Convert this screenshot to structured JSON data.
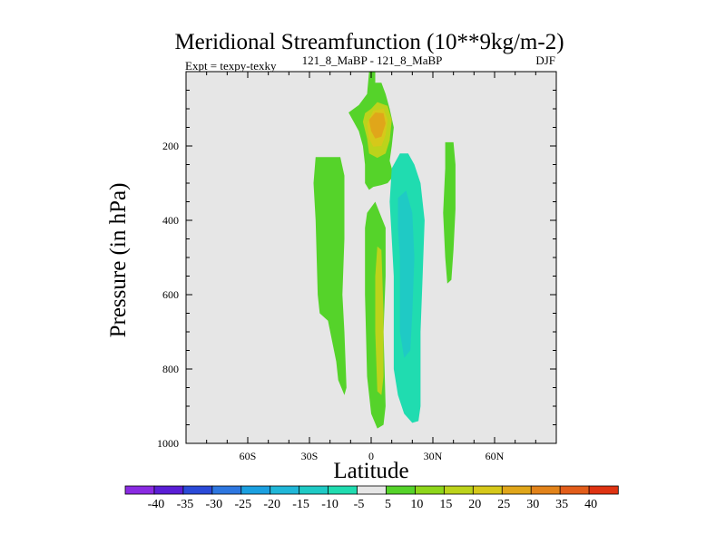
{
  "chart_data": {
    "type": "heatmap",
    "title": "Meridional Streamfunction (10**9kg/m-2)",
    "subtitle_left": "Expt = texpy-texky",
    "subtitle_center": "121_8_MaBP - 121_8_MaBP",
    "subtitle_right": "DJF",
    "xlabel": "Latitude",
    "ylabel": "Pressure (in hPa)",
    "xlim": [
      -90,
      90
    ],
    "ylim": [
      1000,
      0
    ],
    "x_ticks": [
      {
        "value": -60,
        "label": "60S"
      },
      {
        "value": -30,
        "label": "30S"
      },
      {
        "value": 0,
        "label": "0"
      },
      {
        "value": 30,
        "label": "30N"
      },
      {
        "value": 60,
        "label": "60N"
      }
    ],
    "y_ticks": [
      {
        "value": 200,
        "label": "200"
      },
      {
        "value": 400,
        "label": "400"
      },
      {
        "value": 600,
        "label": "600"
      },
      {
        "value": 800,
        "label": "800"
      },
      {
        "value": 1000,
        "label": "1000"
      }
    ],
    "colorbar": {
      "labels": [
        "-40",
        "-35",
        "-30",
        "-25",
        "-20",
        "-15",
        "-10",
        "-5",
        "5",
        "10",
        "15",
        "20",
        "25",
        "30",
        "35",
        "40"
      ],
      "colors": [
        "#8a2be2",
        "#5a1ed6",
        "#2b4ad8",
        "#2e77e0",
        "#1ba0e0",
        "#20b7d8",
        "#1fcac5",
        "#20dcb0",
        "#e6e6e6",
        "#55d32a",
        "#8ed61b",
        "#bcd31b",
        "#d6c81a",
        "#e0a61a",
        "#e2831a",
        "#e25d1a",
        "#df3312"
      ]
    },
    "background_color": "#e6e6e6",
    "contours": [
      {
        "name": "upper-nh-max-outer",
        "color": "#55d32a",
        "points": [
          [
            -1,
            0
          ],
          [
            2,
            0
          ],
          [
            2,
            30
          ],
          [
            5,
            30
          ],
          [
            7,
            60
          ],
          [
            9,
            100
          ],
          [
            11,
            150
          ],
          [
            10,
            200
          ],
          [
            9,
            240
          ],
          [
            11,
            280
          ],
          [
            8,
            300
          ],
          [
            5,
            305
          ],
          [
            1,
            310
          ],
          [
            -1,
            318
          ],
          [
            -3,
            300
          ],
          [
            -3,
            250
          ],
          [
            -4,
            200
          ],
          [
            -6,
            160
          ],
          [
            -11,
            110
          ],
          [
            -6,
            90
          ],
          [
            -2,
            60
          ]
        ]
      },
      {
        "name": "upper-nh-max-15",
        "color": "#bcd31b",
        "points": [
          [
            0,
            100
          ],
          [
            3,
            82
          ],
          [
            8,
            92
          ],
          [
            10,
            130
          ],
          [
            9,
            185
          ],
          [
            7,
            220
          ],
          [
            3,
            232
          ],
          [
            -1,
            220
          ],
          [
            -2,
            180
          ],
          [
            -4,
            135
          ],
          [
            -3,
            112
          ]
        ]
      },
      {
        "name": "upper-nh-max-20",
        "color": "#d6c81a",
        "points": [
          [
            1,
            105
          ],
          [
            6,
            100
          ],
          [
            8,
            130
          ],
          [
            7,
            170
          ],
          [
            5,
            200
          ],
          [
            1,
            202
          ],
          [
            -1,
            180
          ],
          [
            -2,
            140
          ]
        ]
      },
      {
        "name": "upper-nh-max-25",
        "color": "#e0a61a",
        "points": [
          [
            2,
            110
          ],
          [
            6,
            112
          ],
          [
            7,
            140
          ],
          [
            5,
            175
          ],
          [
            2,
            180
          ],
          [
            0,
            160
          ],
          [
            -1,
            130
          ]
        ]
      },
      {
        "name": "southern-green-cell",
        "color": "#55d32a",
        "points": [
          [
            -27,
            230
          ],
          [
            -15,
            230
          ],
          [
            -13,
            280
          ],
          [
            -13,
            450
          ],
          [
            -14,
            600
          ],
          [
            -13,
            700
          ],
          [
            -12,
            850
          ],
          [
            -13,
            870
          ],
          [
            -16,
            830
          ],
          [
            -17,
            780
          ],
          [
            -21,
            670
          ],
          [
            -25,
            650
          ],
          [
            -26,
            600
          ],
          [
            -27,
            400
          ],
          [
            -28,
            300
          ]
        ]
      },
      {
        "name": "equatorial-green-cell",
        "color": "#55d32a",
        "points": [
          [
            -2,
            380
          ],
          [
            2,
            350
          ],
          [
            7,
            420
          ],
          [
            7,
            550
          ],
          [
            6,
            700
          ],
          [
            7,
            900
          ],
          [
            6,
            950
          ],
          [
            3,
            960
          ],
          [
            0,
            920
          ],
          [
            -2,
            820
          ],
          [
            -3,
            600
          ],
          [
            -3,
            420
          ]
        ]
      },
      {
        "name": "equatorial-yellow-core",
        "color": "#bcd31b",
        "points": [
          [
            3,
            470
          ],
          [
            5,
            480
          ],
          [
            6,
            650
          ],
          [
            6,
            820
          ],
          [
            5,
            870
          ],
          [
            3,
            860
          ],
          [
            2,
            700
          ],
          [
            2,
            550
          ]
        ]
      },
      {
        "name": "cyan-cell-outer",
        "color": "#20dcb0",
        "points": [
          [
            10,
            260
          ],
          [
            14,
            220
          ],
          [
            18,
            220
          ],
          [
            21,
            250
          ],
          [
            24,
            300
          ],
          [
            26,
            400
          ],
          [
            25,
            550
          ],
          [
            24,
            700
          ],
          [
            24,
            900
          ],
          [
            23,
            940
          ],
          [
            20,
            945
          ],
          [
            16,
            920
          ],
          [
            13,
            870
          ],
          [
            11,
            800
          ],
          [
            11,
            550
          ],
          [
            10,
            450
          ],
          [
            9,
            350
          ]
        ]
      },
      {
        "name": "cyan-cell-inner",
        "color": "#1fcac5",
        "points": [
          [
            13,
            340
          ],
          [
            17,
            320
          ],
          [
            20,
            380
          ],
          [
            21,
            500
          ],
          [
            20,
            650
          ],
          [
            19,
            750
          ],
          [
            16,
            770
          ],
          [
            14,
            700
          ],
          [
            14,
            500
          ],
          [
            13,
            420
          ]
        ]
      },
      {
        "name": "nh-green-small",
        "color": "#55d32a",
        "points": [
          [
            36,
            190
          ],
          [
            40,
            190
          ],
          [
            41,
            250
          ],
          [
            41,
            370
          ],
          [
            40,
            480
          ],
          [
            39,
            560
          ],
          [
            37,
            570
          ],
          [
            36,
            500
          ],
          [
            35,
            380
          ],
          [
            36,
            260
          ]
        ]
      }
    ]
  }
}
